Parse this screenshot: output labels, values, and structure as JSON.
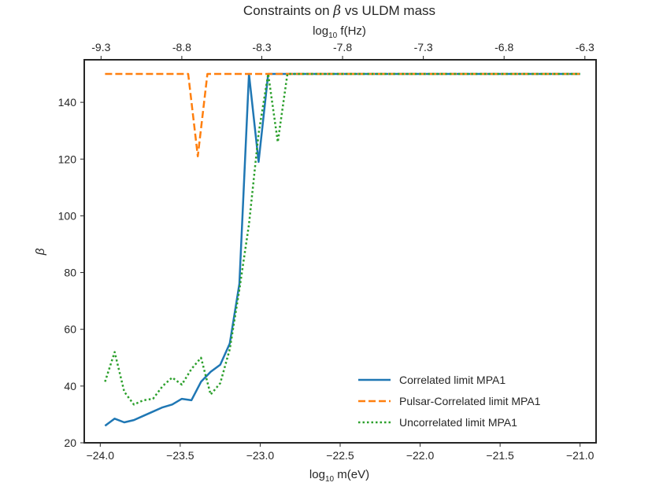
{
  "chart_data": {
    "type": "line",
    "title": "Constraints on β vs ULDM mass",
    "title_prefix": "Constraints on ",
    "title_symbol": "β",
    "title_suffix": " vs ULDM mass",
    "xlabel": {
      "prefix": "log",
      "subscript": "10",
      "suffix": " m(eV)"
    },
    "ylabel": "β",
    "top_xlabel": {
      "prefix": "log",
      "subscript": "10",
      "suffix": " f(Hz)"
    },
    "xlim": [
      -24.1,
      -20.9
    ],
    "ylim": [
      20,
      155
    ],
    "x_ticks": [
      -24.0,
      -23.5,
      -23.0,
      -22.5,
      -22.0,
      -21.5,
      -21.0
    ],
    "x_tick_labels": [
      "−24.0",
      "−23.5",
      "−23.0",
      "−22.5",
      "−22.0",
      "−21.5",
      "−21.0"
    ],
    "y_ticks": [
      20,
      40,
      60,
      80,
      100,
      120,
      140
    ],
    "y_tick_labels": [
      "20",
      "40",
      "60",
      "80",
      "100",
      "120",
      "140"
    ],
    "top_x_ticks": [
      -23.995,
      -23.49,
      -22.99,
      -22.485,
      -21.98,
      -21.475,
      -20.97
    ],
    "top_x_tick_labels": [
      "-9.3",
      "-8.8",
      "-8.3",
      "-7.8",
      "-7.3",
      "-6.8",
      "-6.3"
    ],
    "legend_position": "lower right",
    "series": [
      {
        "name": "Correlated limit MPA1",
        "color": "#1f77b4",
        "style": "solid",
        "x": [
          -23.97,
          -23.91,
          -23.85,
          -23.79,
          -23.73,
          -23.67,
          -23.61,
          -23.55,
          -23.49,
          -23.43,
          -23.37,
          -23.31,
          -23.25,
          -23.19,
          -23.13,
          -23.07,
          -23.01,
          -22.95,
          -22.89,
          -22.83,
          -22.7,
          -21.5,
          -21.0
        ],
        "values": [
          26,
          28.5,
          27.2,
          28,
          29.5,
          31,
          32.5,
          33.5,
          35.5,
          35,
          41.5,
          45,
          47.5,
          55,
          76,
          150,
          119,
          150,
          150,
          150,
          150,
          150,
          150
        ]
      },
      {
        "name": "Pulsar-Correlated limit MPA1",
        "color": "#ff7f0e",
        "style": "dashed",
        "x": [
          -23.97,
          -23.6,
          -23.45,
          -23.39,
          -23.33,
          -23.27,
          -23.2,
          -22.9,
          -22.5,
          -22.0,
          -21.5,
          -21.0
        ],
        "values": [
          150,
          150,
          150,
          121,
          150,
          150,
          150,
          150,
          150,
          150,
          150,
          150
        ]
      },
      {
        "name": "Uncorrelated limit MPA1",
        "color": "#2ca02c",
        "style": "dotted",
        "x": [
          -23.97,
          -23.91,
          -23.85,
          -23.79,
          -23.73,
          -23.67,
          -23.61,
          -23.55,
          -23.49,
          -23.43,
          -23.37,
          -23.31,
          -23.25,
          -23.19,
          -23.13,
          -23.07,
          -23.01,
          -22.95,
          -22.89,
          -22.83,
          -22.7,
          -21.5,
          -21.0
        ],
        "values": [
          41.5,
          52,
          38,
          33.5,
          35,
          35.5,
          40,
          43,
          40.5,
          46,
          50,
          37,
          41,
          53,
          74,
          97,
          129,
          150,
          126,
          150,
          150,
          150,
          150
        ]
      }
    ]
  }
}
